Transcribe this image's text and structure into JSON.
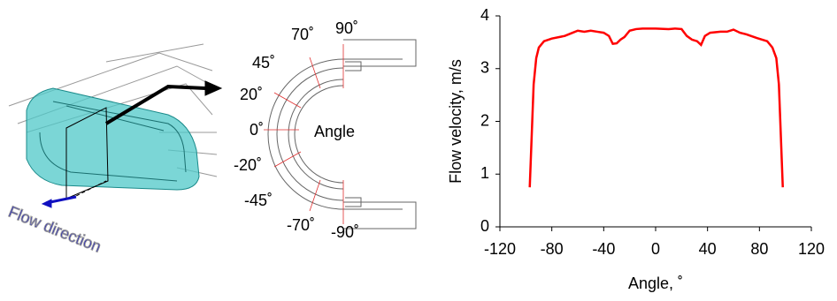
{
  "illustration": {
    "flow_label": "Flow direction"
  },
  "diagram": {
    "angle_labels": [
      "90˚",
      "70˚",
      "45˚",
      "20˚",
      "0˚",
      "-20˚",
      "-45˚",
      "-70˚",
      "-90˚"
    ],
    "center_label": "Angle"
  },
  "chart_data": {
    "type": "line",
    "x_label": "Angle, ˚",
    "y_label": "Flow velocity, m/s",
    "xlim": [
      -120,
      120
    ],
    "xticks": [
      -120,
      -80,
      -40,
      0,
      40,
      80,
      120
    ],
    "ylim": [
      0,
      4
    ],
    "yticks": [
      0,
      1,
      2,
      3,
      4
    ],
    "grid": false,
    "series": [
      {
        "color": "#ff0000",
        "x": [
          -97,
          -94,
          -92,
          -90,
          -86,
          -80,
          -70,
          -65,
          -60,
          -55,
          -50,
          -45,
          -40,
          -36,
          -33,
          -30,
          -27,
          -24,
          -20,
          -15,
          -10,
          0,
          10,
          15,
          20,
          24,
          28,
          32,
          35,
          38,
          42,
          50,
          55,
          60,
          65,
          70,
          78,
          86,
          90,
          93,
          95,
          98
        ],
        "values": [
          0.75,
          2.7,
          3.2,
          3.4,
          3.52,
          3.57,
          3.62,
          3.67,
          3.72,
          3.7,
          3.72,
          3.7,
          3.68,
          3.62,
          3.47,
          3.48,
          3.55,
          3.6,
          3.72,
          3.75,
          3.76,
          3.76,
          3.75,
          3.76,
          3.75,
          3.62,
          3.55,
          3.52,
          3.45,
          3.62,
          3.68,
          3.7,
          3.7,
          3.74,
          3.68,
          3.65,
          3.58,
          3.52,
          3.4,
          3.2,
          2.7,
          0.75
        ]
      }
    ]
  }
}
